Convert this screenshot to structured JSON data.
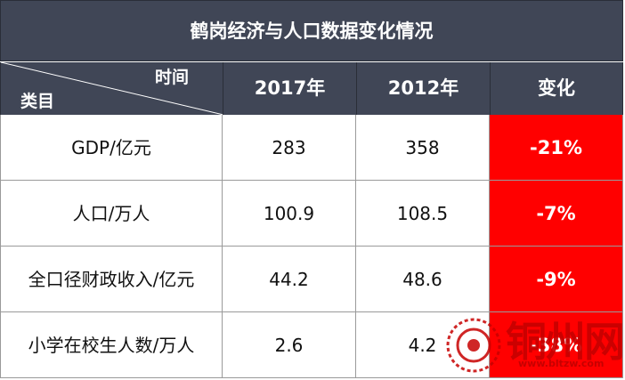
{
  "title": "鹤岗经济与人口数据变化情况",
  "header": {
    "time_label": "时间",
    "category_label": "类目",
    "col_2017": "2017年",
    "col_2012": "2012年",
    "col_change": "变化"
  },
  "rows": [
    {
      "category": "GDP/亿元",
      "v2017": "283",
      "v2012": "358",
      "change": "-21%"
    },
    {
      "category": "人口/万人",
      "v2017": "100.9",
      "v2012": "108.5",
      "change": "-7%"
    },
    {
      "category": "全口径财政收入/亿元",
      "v2017": "44.2",
      "v2012": "48.6",
      "change": "-9%"
    },
    {
      "category": "小学在校生人数/万人",
      "v2017": "2.6",
      "v2012": "4.2",
      "change": "-38%"
    }
  ],
  "watermark": {
    "text": "铜州网",
    "url": "www.bltzw.com"
  },
  "colors": {
    "header_bg": "#404656",
    "change_bg": "#ff0000",
    "watermark": "#c70000"
  }
}
